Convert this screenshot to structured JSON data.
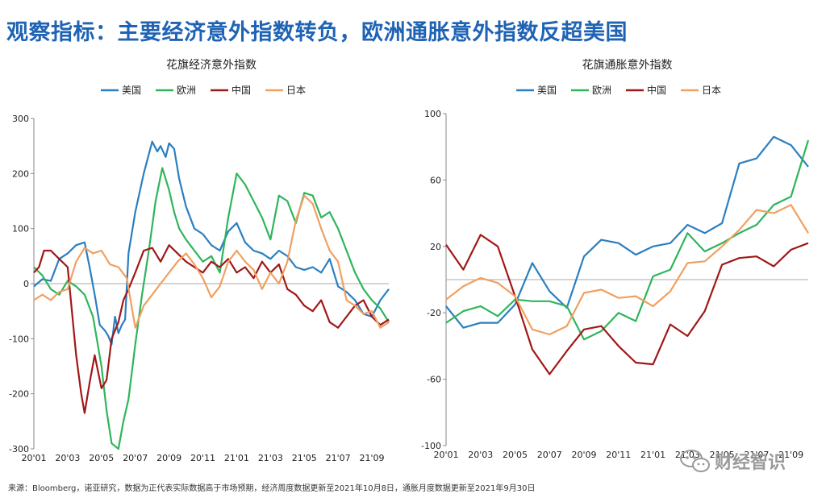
{
  "headline": "观察指标：主要经济意外指数转负，欧洲通胀意外指数反超美国",
  "footer": "来源：Bloomberg，诺亚研究，数据为正代表实际数据高于市场预期，经济周度数据更新至2021年10月8日，通胀月度数据更新至2021年9月30日",
  "watermark": "财经智识",
  "colors": {
    "美国": "#2a7fc1",
    "欧洲": "#2fb55b",
    "中国": "#a01818",
    "日本": "#f0a060"
  },
  "chart_data": [
    {
      "type": "line",
      "title": "花旗经济意外指数",
      "ylim": [
        -300,
        300
      ],
      "yticks": [
        300,
        200,
        100,
        0,
        -100,
        -200,
        -300
      ],
      "xticks": [
        "20'01",
        "20'03",
        "20'05",
        "20'07",
        "20'09",
        "20'11",
        "21'01",
        "21'03",
        "21'05",
        "21'07",
        "21'09"
      ],
      "x_range": [
        0,
        21
      ],
      "series": [
        {
          "name": "美国",
          "x": [
            0,
            0.5,
            1,
            1.5,
            2,
            2.5,
            3,
            3.3,
            3.6,
            3.9,
            4.2,
            4.4,
            4.6,
            4.8,
            5,
            5.2,
            5.4,
            5.6,
            6,
            6.5,
            7,
            7.3,
            7.5,
            7.8,
            8,
            8.3,
            8.6,
            9,
            9.5,
            10,
            10.5,
            11,
            11.5,
            12,
            12.5,
            13,
            13.5,
            14,
            14.5,
            15,
            15.5,
            16,
            16.5,
            17,
            17.5,
            18,
            18.5,
            19,
            19.5,
            20,
            20.5,
            21
          ],
          "y": [
            -5,
            8,
            5,
            45,
            55,
            70,
            75,
            30,
            -20,
            -75,
            -85,
            -95,
            -110,
            -60,
            -90,
            -75,
            -65,
            55,
            130,
            200,
            258,
            240,
            250,
            230,
            255,
            245,
            190,
            140,
            100,
            90,
            70,
            60,
            95,
            110,
            75,
            60,
            55,
            45,
            60,
            50,
            30,
            25,
            30,
            20,
            45,
            -5,
            -15,
            -30,
            -55,
            -60,
            -30,
            -10
          ]
        },
        {
          "name": "欧洲",
          "x": [
            0,
            0.5,
            1,
            1.5,
            2,
            2.5,
            3,
            3.5,
            4,
            4.3,
            4.6,
            5,
            5.3,
            5.6,
            6,
            6.4,
            6.8,
            7.2,
            7.6,
            8,
            8.3,
            8.6,
            9,
            9.5,
            10,
            10.5,
            11,
            11.5,
            12,
            12.5,
            13,
            13.5,
            14,
            14.5,
            15,
            15.5,
            16,
            16.5,
            17,
            17.5,
            18,
            18.5,
            19,
            19.5,
            20,
            20.5,
            21
          ],
          "y": [
            30,
            15,
            -10,
            -20,
            5,
            -5,
            -20,
            -60,
            -150,
            -230,
            -290,
            -300,
            -250,
            -210,
            -110,
            -20,
            60,
            150,
            210,
            170,
            130,
            100,
            80,
            60,
            40,
            50,
            20,
            120,
            200,
            180,
            150,
            120,
            80,
            160,
            150,
            110,
            165,
            160,
            120,
            130,
            100,
            60,
            20,
            -10,
            -30,
            -45,
            -70
          ]
        },
        {
          "name": "中国",
          "x": [
            0,
            0.3,
            0.6,
            1,
            1.5,
            2,
            2.5,
            2.8,
            3,
            3.3,
            3.6,
            4,
            4.3,
            4.6,
            5,
            5.3,
            5.6,
            6,
            6.5,
            7,
            7.5,
            8,
            8.5,
            9,
            9.5,
            10,
            10.5,
            11,
            11.5,
            12,
            12.5,
            13,
            13.5,
            14,
            14.5,
            15,
            15.5,
            16,
            16.5,
            17,
            17.5,
            18,
            18.5,
            19,
            19.5,
            20,
            20.5,
            21
          ],
          "y": [
            20,
            30,
            60,
            60,
            45,
            30,
            -130,
            -200,
            -235,
            -180,
            -130,
            -190,
            -175,
            -100,
            -70,
            -30,
            -10,
            20,
            60,
            65,
            40,
            70,
            55,
            40,
            30,
            20,
            40,
            30,
            45,
            20,
            30,
            10,
            40,
            20,
            35,
            -10,
            -20,
            -40,
            -50,
            -30,
            -70,
            -80,
            -60,
            -40,
            -30,
            -60,
            -75,
            -65
          ]
        },
        {
          "name": "日本",
          "x": [
            0,
            0.5,
            1,
            1.5,
            2,
            2.5,
            3,
            3.5,
            4,
            4.5,
            5,
            5.5,
            6,
            6.5,
            7,
            7.5,
            8,
            8.5,
            9,
            9.5,
            10,
            10.5,
            11,
            11.5,
            12,
            12.5,
            13,
            13.5,
            14,
            14.5,
            15,
            15.5,
            16,
            16.5,
            17,
            17.5,
            18,
            18.5,
            19,
            19.5,
            20,
            20.5,
            21
          ],
          "y": [
            -30,
            -20,
            -30,
            -15,
            -10,
            40,
            65,
            55,
            60,
            35,
            30,
            10,
            -80,
            -40,
            -20,
            0,
            20,
            40,
            55,
            35,
            10,
            -25,
            -5,
            40,
            60,
            40,
            25,
            -10,
            20,
            0,
            40,
            115,
            160,
            145,
            100,
            60,
            40,
            -30,
            -40,
            -55,
            -50,
            -80,
            -70
          ]
        }
      ]
    },
    {
      "type": "line",
      "title": "花旗通胀意外指数",
      "ylim": [
        -100,
        100
      ],
      "yticks": [
        100,
        60,
        20,
        -20,
        -60,
        -100
      ],
      "xticks": [
        "20'01",
        "20'03",
        "20'05",
        "20'07",
        "20'09",
        "20'11",
        "21'01",
        "21'03",
        "21'05",
        "21'07",
        "21'09"
      ],
      "x_range": [
        0,
        21
      ],
      "series": [
        {
          "name": "美国",
          "x": [
            0,
            1,
            2,
            3,
            4,
            5,
            6,
            7,
            8,
            9,
            10,
            11,
            12,
            13,
            14,
            15,
            16,
            17,
            18,
            19,
            20,
            21
          ],
          "y": [
            -16,
            -29,
            -26,
            -26,
            -15,
            10,
            -7,
            -17,
            14,
            24,
            22,
            15,
            20,
            22,
            33,
            28,
            34,
            70,
            73,
            86,
            81,
            68
          ]
        },
        {
          "name": "欧洲",
          "x": [
            0,
            1,
            2,
            3,
            4,
            5,
            6,
            7,
            8,
            9,
            10,
            11,
            12,
            13,
            14,
            15,
            16,
            17,
            18,
            19,
            20,
            21
          ],
          "y": [
            -26,
            -19,
            -16,
            -22,
            -12,
            -13,
            -13,
            -16,
            -36,
            -31,
            -20,
            -25,
            2,
            6,
            28,
            17,
            22,
            28,
            33,
            45,
            50,
            84
          ]
        },
        {
          "name": "中国",
          "x": [
            0,
            1,
            2,
            3,
            4,
            5,
            6,
            7,
            8,
            9,
            10,
            11,
            12,
            13,
            14,
            15,
            16,
            17,
            18,
            19,
            20,
            21
          ],
          "y": [
            21,
            6,
            27,
            20,
            -10,
            -42,
            -57,
            -43,
            -30,
            -28,
            -40,
            -50,
            -51,
            -27,
            -34,
            -19,
            9,
            13,
            14,
            8,
            18,
            22
          ]
        },
        {
          "name": "日本",
          "x": [
            0,
            1,
            2,
            3,
            4,
            5,
            6,
            7,
            8,
            9,
            10,
            11,
            12,
            13,
            14,
            15,
            16,
            17,
            18,
            19,
            20,
            21
          ],
          "y": [
            -12,
            -4,
            1,
            -2,
            -10,
            -30,
            -33,
            -28,
            -8,
            -6,
            -11,
            -10,
            -16,
            -7,
            10,
            11,
            20,
            30,
            42,
            40,
            45,
            28
          ]
        }
      ]
    }
  ]
}
